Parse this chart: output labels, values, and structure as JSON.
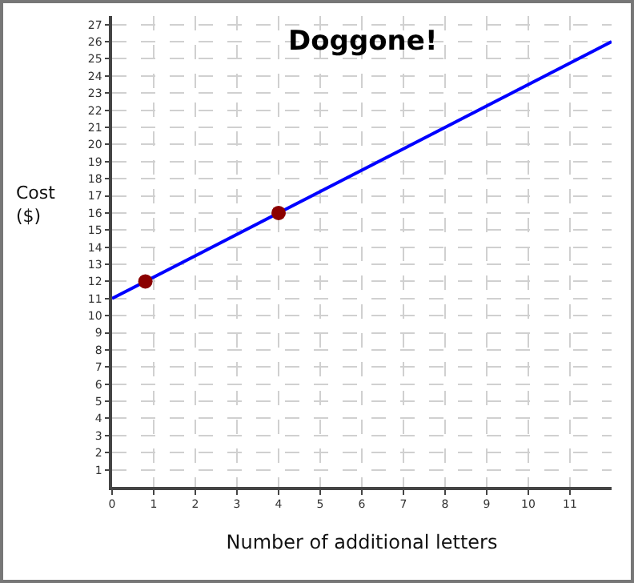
{
  "chart_data": {
    "type": "line",
    "title": "Doggone!",
    "xlabel": "Number of additional letters",
    "ylabel": "Cost\n($)",
    "xlim": [
      0,
      12
    ],
    "xticks": [
      0,
      1,
      2,
      3,
      4,
      5,
      6,
      7,
      8,
      9,
      10,
      11
    ],
    "ylim": [
      0,
      27.5
    ],
    "yticks": [
      1,
      2,
      3,
      4,
      5,
      6,
      7,
      8,
      9,
      10,
      11,
      12,
      13,
      14,
      15,
      16,
      17,
      18,
      19,
      20,
      21,
      22,
      23,
      24,
      25,
      26,
      27
    ],
    "grid": true,
    "legend": false,
    "series": [
      {
        "type": "line",
        "color": "#0000ff",
        "x": [
          0,
          12
        ],
        "values": [
          11,
          26
        ],
        "marker": "none"
      },
      {
        "type": "scatter",
        "color": "#8b0000",
        "x": [
          0.8,
          4
        ],
        "values": [
          12,
          16
        ],
        "marker": "circle"
      }
    ]
  }
}
